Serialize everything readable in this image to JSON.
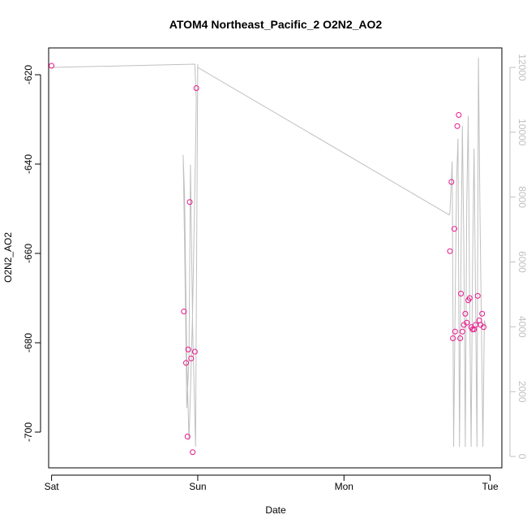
{
  "chart_data": {
    "type": "scatter",
    "title": "ATOM4 Northeast_Pacific_2 O2N2_AO2",
    "xlabel": "Date",
    "ylabel": "O2N2_AO2",
    "x_ticks": [
      "Sat",
      "Sun",
      "Mon",
      "Tue"
    ],
    "x_range_days": [
      -0.02,
      3.08
    ],
    "y_left": {
      "ticks": [
        -620,
        -640,
        -660,
        -680,
        -700
      ],
      "range": [
        -708,
        -614
      ]
    },
    "y_right": {
      "ticks": [
        0,
        2000,
        4000,
        6000,
        8000,
        10000,
        12000
      ],
      "range": [
        -350,
        12600
      ],
      "color": "#c0c0c0"
    },
    "grid": false,
    "series": [
      {
        "type": "scatter",
        "color": "#e8198b",
        "x": [
          0.0,
          0.905,
          0.92,
          0.93,
          0.935,
          0.945,
          0.955,
          0.965,
          0.98,
          0.99,
          2.725,
          2.735,
          2.745,
          2.755,
          2.76,
          2.775,
          2.785,
          2.795,
          2.8,
          2.81,
          2.82,
          2.83,
          2.84,
          2.85,
          2.86,
          2.87,
          2.88,
          2.89,
          2.9,
          2.915,
          2.925,
          2.935,
          2.945,
          2.955
        ],
        "y": [
          -618,
          -673,
          -684.5,
          -701,
          -681.5,
          -648.5,
          -683.5,
          -704.5,
          -682,
          -623,
          -659.5,
          -644,
          -679,
          -654.5,
          -677.5,
          -631.5,
          -629,
          -679,
          -669,
          -677.5,
          -676,
          -673.5,
          -675.5,
          -670.5,
          -670,
          -676.5,
          -677,
          -677,
          -676,
          -669.5,
          -675,
          -676,
          -673.5,
          -676.5
        ]
      },
      {
        "type": "line",
        "axis": "right",
        "color": "#c0c0c0",
        "x": [
          0.0,
          0.98,
          0.99,
          0.985,
          0.965,
          0.95,
          0.94,
          0.925,
          0.91,
          0.9,
          0.91,
          0.925,
          0.94,
          0.95,
          0.965,
          0.985,
          1.0,
          1.0,
          2.72,
          2.725,
          2.74,
          2.75,
          2.77,
          2.78,
          2.79,
          2.8,
          2.81,
          2.82,
          2.83,
          2.84,
          2.85,
          2.86,
          2.87,
          2.88,
          2.89,
          2.9,
          2.91,
          2.92,
          2.93,
          2.94,
          2.95,
          2.96,
          2.97
        ],
        "y": [
          12000,
          12100,
          11000,
          9500,
          4500,
          2000,
          500,
          3000,
          8000,
          9300,
          6500,
          1500,
          3000,
          9000,
          4000,
          300,
          12100,
          12000,
          7450,
          7550,
          9100,
          300,
          8500,
          9800,
          300,
          6000,
          10200,
          6500,
          300,
          7800,
          10500,
          4500,
          300,
          6000,
          9500,
          5000,
          300,
          12300,
          7500,
          4000,
          300,
          4200,
          4000
        ]
      }
    ]
  }
}
